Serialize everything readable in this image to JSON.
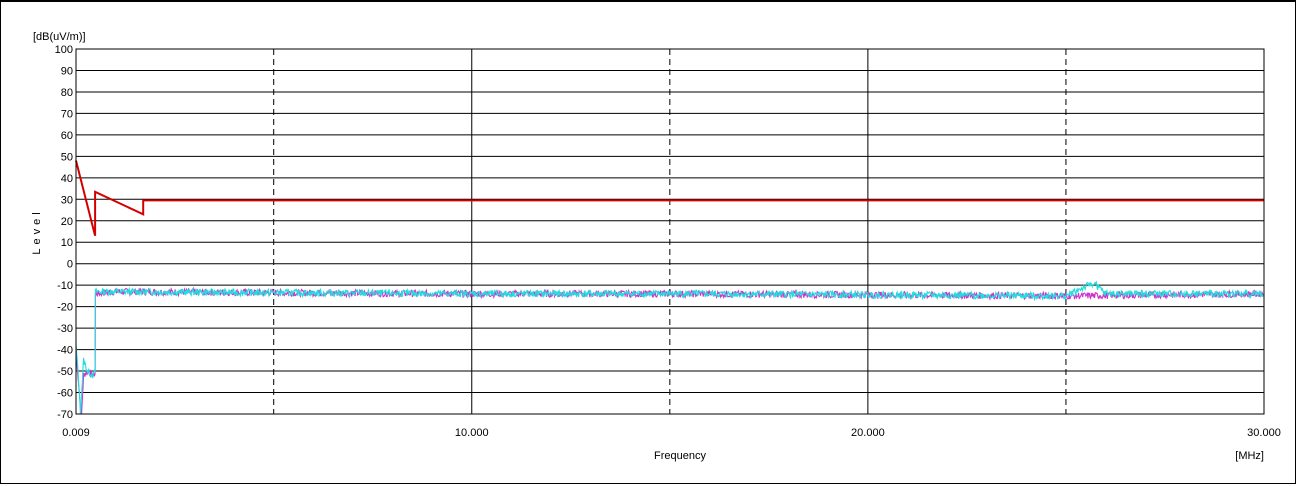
{
  "chart_data": {
    "type": "line",
    "ylabel": "Level",
    "yunit": "[dB(uV/m)]",
    "xlabel": "Frequency",
    "xunit": "[MHz]",
    "xlim": [
      0.009,
      30.0
    ],
    "ylim": [
      -70,
      100
    ],
    "x_tick_labels": [
      "0.009",
      "10.000",
      "20.000",
      "30.000"
    ],
    "x_ticks": [
      0.009,
      10.0,
      20.0,
      30.0
    ],
    "x_dashed_gridlines": [
      5.0,
      15.0,
      25.0
    ],
    "y_ticks": [
      100,
      90,
      80,
      70,
      60,
      50,
      40,
      30,
      20,
      10,
      0,
      -10,
      -20,
      -30,
      -40,
      -50,
      -60,
      -70
    ],
    "grid": true,
    "colors": {
      "limit": "#d40000",
      "trace1": "#cc33cc",
      "trace2": "#22dddd"
    },
    "series": [
      {
        "key": "limit",
        "color": "#d40000",
        "points": [
          [
            0.009,
            48
          ],
          [
            0.49,
            13
          ],
          [
            0.49,
            33.5
          ],
          [
            1.705,
            23
          ],
          [
            1.705,
            29.5
          ],
          [
            30.0,
            29.5
          ]
        ]
      },
      {
        "key": "trace1",
        "color": "#cc33cc",
        "points": [
          [
            0.009,
            -40
          ],
          [
            0.1,
            -62
          ],
          [
            0.15,
            -70
          ],
          [
            0.2,
            -52
          ],
          [
            0.3,
            -50
          ],
          [
            0.45,
            -52
          ],
          [
            0.49,
            -51
          ],
          [
            0.5,
            -14
          ],
          [
            1,
            -13
          ],
          [
            5,
            -13.5
          ],
          [
            10,
            -14
          ],
          [
            15,
            -14
          ],
          [
            20,
            -14.5
          ],
          [
            25,
            -15
          ],
          [
            30,
            -14
          ]
        ]
      },
      {
        "key": "trace2",
        "color": "#22dddd",
        "points": [
          [
            0.009,
            -38
          ],
          [
            0.08,
            -55
          ],
          [
            0.12,
            -70
          ],
          [
            0.2,
            -45
          ],
          [
            0.3,
            -50
          ],
          [
            0.45,
            -52
          ],
          [
            0.49,
            -50
          ],
          [
            0.5,
            -13
          ],
          [
            1,
            -13
          ],
          [
            5,
            -13.5
          ],
          [
            10,
            -14
          ],
          [
            15,
            -14
          ],
          [
            20,
            -14.5
          ],
          [
            25,
            -15
          ],
          [
            25.7,
            -9
          ],
          [
            26,
            -14
          ],
          [
            30,
            -14
          ]
        ]
      }
    ]
  }
}
